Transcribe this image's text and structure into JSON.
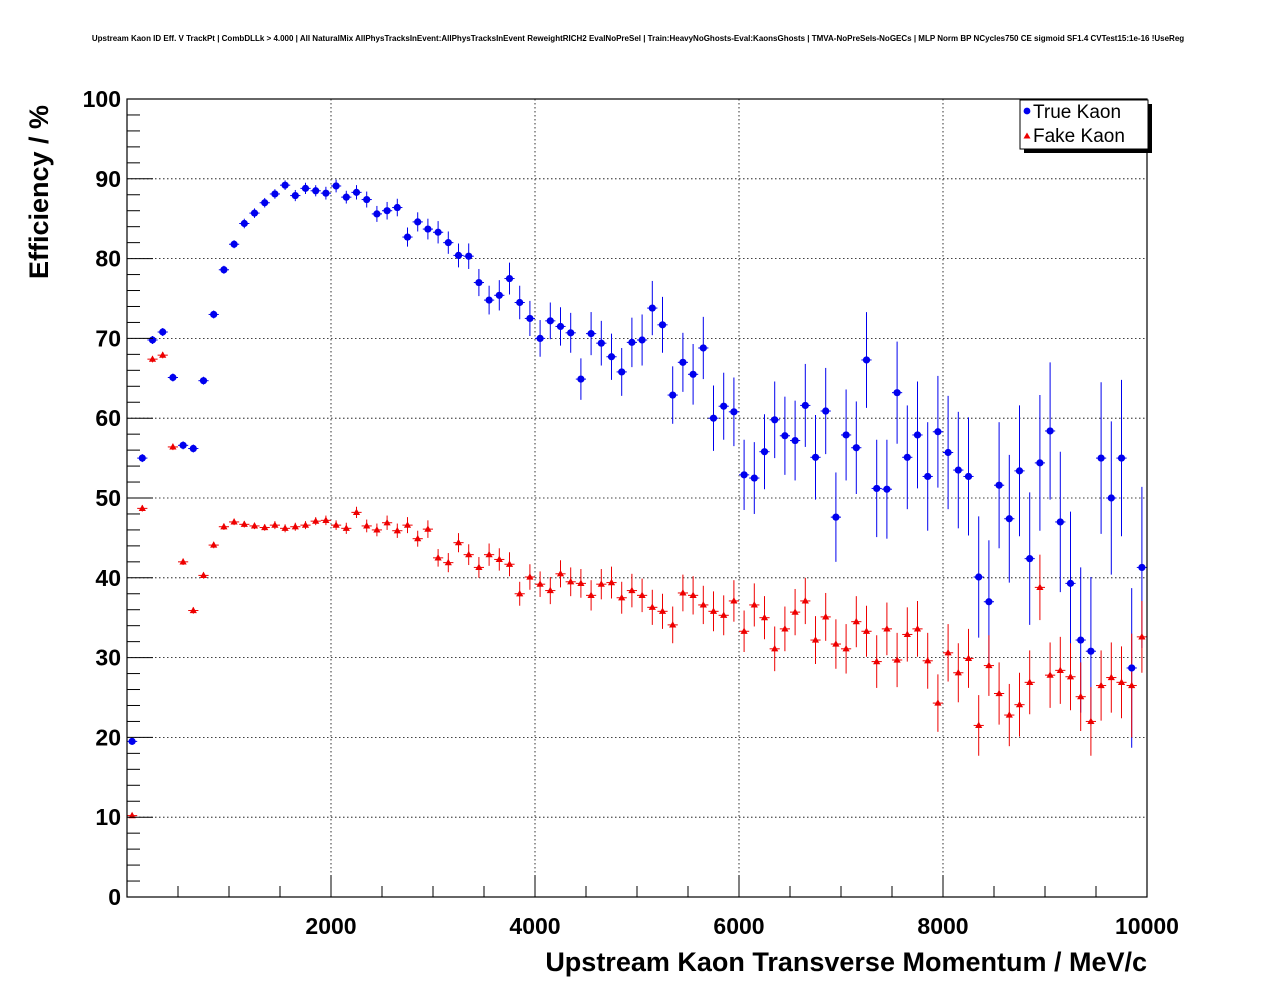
{
  "chart_data": {
    "type": "scatter",
    "title": "Upstream Kaon ID Eff. V TrackPt | CombDLLk > 4.000 | All NaturalMix AllPhysTracksInEvent:AllPhysTracksInEvent ReweightRICH2 EvalNoPreSel | Train:HeavyNoGhosts-Eval:KaonsGhosts | TMVA-NoPreSels-NoGECs | MLP Norm BP NCycles750 CE sigmoid SF1.4 CVTest15:1e-16 !UseReg",
    "xlabel": "Upstream Kaon Transverse Momentum / MeV/c",
    "ylabel": "Efficiency / %",
    "xlim": [
      0,
      10000
    ],
    "ylim": [
      0,
      100
    ],
    "x_ticks": [
      2000,
      4000,
      6000,
      8000,
      10000
    ],
    "y_ticks": [
      0,
      10,
      20,
      30,
      40,
      50,
      60,
      70,
      80,
      90,
      100
    ],
    "grid": true,
    "legend": "top-right",
    "series": [
      {
        "name": "True Kaon",
        "color": "#0000ee",
        "marker": "circle",
        "points": [
          [
            50,
            19.5,
            0.4
          ],
          [
            150,
            55.0,
            0.5
          ],
          [
            250,
            69.8,
            0.5
          ],
          [
            350,
            70.8,
            0.5
          ],
          [
            450,
            65.1,
            0.5
          ],
          [
            550,
            56.6,
            0.5
          ],
          [
            650,
            56.2,
            0.5
          ],
          [
            750,
            64.7,
            0.5
          ],
          [
            850,
            73.0,
            0.5
          ],
          [
            950,
            78.6,
            0.5
          ],
          [
            1050,
            81.8,
            0.5
          ],
          [
            1150,
            84.4,
            0.6
          ],
          [
            1250,
            85.7,
            0.6
          ],
          [
            1350,
            87.0,
            0.6
          ],
          [
            1450,
            88.1,
            0.6
          ],
          [
            1550,
            89.2,
            0.6
          ],
          [
            1650,
            87.9,
            0.7
          ],
          [
            1750,
            88.8,
            0.7
          ],
          [
            1850,
            88.5,
            0.7
          ],
          [
            1950,
            88.2,
            0.8
          ],
          [
            2050,
            89.1,
            0.8
          ],
          [
            2150,
            87.7,
            0.8
          ],
          [
            2250,
            88.3,
            0.9
          ],
          [
            2350,
            87.4,
            1.0
          ],
          [
            2450,
            85.6,
            1.0
          ],
          [
            2550,
            86.0,
            1.1
          ],
          [
            2650,
            86.4,
            1.1
          ],
          [
            2750,
            82.7,
            1.2
          ],
          [
            2850,
            84.6,
            1.2
          ],
          [
            2950,
            83.7,
            1.3
          ],
          [
            3050,
            83.3,
            1.4
          ],
          [
            3150,
            82.0,
            1.4
          ],
          [
            3250,
            80.4,
            1.5
          ],
          [
            3350,
            80.3,
            1.6
          ],
          [
            3450,
            77.0,
            1.7
          ],
          [
            3550,
            74.8,
            1.8
          ],
          [
            3650,
            75.4,
            1.9
          ],
          [
            3750,
            77.5,
            2.0
          ],
          [
            3850,
            74.5,
            2.1
          ],
          [
            3950,
            72.5,
            2.2
          ],
          [
            4050,
            70.0,
            2.3
          ],
          [
            4150,
            72.2,
            2.3
          ],
          [
            4250,
            71.5,
            2.4
          ],
          [
            4350,
            70.7,
            2.5
          ],
          [
            4450,
            64.9,
            2.6
          ],
          [
            4550,
            70.6,
            2.7
          ],
          [
            4650,
            69.4,
            2.8
          ],
          [
            4750,
            67.7,
            2.9
          ],
          [
            4850,
            65.8,
            3.0
          ],
          [
            4950,
            69.5,
            3.1
          ],
          [
            5050,
            69.8,
            3.2
          ],
          [
            5150,
            73.8,
            3.4
          ],
          [
            5250,
            71.7,
            3.5
          ],
          [
            5350,
            62.9,
            3.6
          ],
          [
            5450,
            67.0,
            3.7
          ],
          [
            5550,
            65.5,
            3.8
          ],
          [
            5650,
            68.8,
            3.9
          ],
          [
            5750,
            60.0,
            4.1
          ],
          [
            5850,
            61.5,
            4.2
          ],
          [
            5950,
            60.8,
            4.3
          ],
          [
            6050,
            52.9,
            4.4
          ],
          [
            6150,
            52.5,
            4.5
          ],
          [
            6250,
            55.8,
            4.7
          ],
          [
            6350,
            59.8,
            4.8
          ],
          [
            6450,
            57.8,
            4.9
          ],
          [
            6550,
            57.2,
            5.0
          ],
          [
            6650,
            61.6,
            5.2
          ],
          [
            6750,
            55.1,
            5.3
          ],
          [
            6850,
            60.9,
            5.4
          ],
          [
            6950,
            47.6,
            5.6
          ],
          [
            7050,
            57.9,
            5.7
          ],
          [
            7150,
            56.3,
            5.8
          ],
          [
            7250,
            67.3,
            6.0
          ],
          [
            7350,
            51.2,
            6.1
          ],
          [
            7450,
            51.1,
            6.2
          ],
          [
            7550,
            63.2,
            6.4
          ],
          [
            7650,
            55.1,
            6.5
          ],
          [
            7750,
            57.9,
            6.7
          ],
          [
            7850,
            52.7,
            6.8
          ],
          [
            7950,
            58.3,
            7.0
          ],
          [
            8050,
            55.7,
            7.1
          ],
          [
            8150,
            53.5,
            7.3
          ],
          [
            8250,
            52.7,
            7.4
          ],
          [
            8350,
            40.1,
            7.6
          ],
          [
            8450,
            37.0,
            7.7
          ],
          [
            8550,
            51.6,
            7.9
          ],
          [
            8650,
            47.4,
            8.0
          ],
          [
            8750,
            53.4,
            8.2
          ],
          [
            8850,
            42.4,
            8.3
          ],
          [
            8950,
            54.4,
            8.5
          ],
          [
            9050,
            58.4,
            8.6
          ],
          [
            9150,
            47.0,
            8.8
          ],
          [
            9250,
            39.3,
            9.0
          ],
          [
            9350,
            32.2,
            9.1
          ],
          [
            9450,
            30.8,
            9.3
          ],
          [
            9550,
            55.0,
            9.5
          ],
          [
            9650,
            50.0,
            9.6
          ],
          [
            9750,
            55.0,
            9.8
          ],
          [
            9850,
            28.7,
            10.0
          ],
          [
            9950,
            41.3,
            10.1
          ]
        ]
      },
      {
        "name": "Fake Kaon",
        "color": "#ee0000",
        "marker": "triangle",
        "points": [
          [
            50,
            10.2,
            0.3
          ],
          [
            150,
            48.7,
            0.4
          ],
          [
            250,
            67.4,
            0.4
          ],
          [
            350,
            67.9,
            0.4
          ],
          [
            450,
            56.4,
            0.4
          ],
          [
            550,
            42.0,
            0.4
          ],
          [
            650,
            35.9,
            0.4
          ],
          [
            750,
            40.3,
            0.4
          ],
          [
            850,
            44.1,
            0.4
          ],
          [
            950,
            46.4,
            0.4
          ],
          [
            1050,
            47.0,
            0.4
          ],
          [
            1150,
            46.7,
            0.4
          ],
          [
            1250,
            46.5,
            0.4
          ],
          [
            1350,
            46.3,
            0.4
          ],
          [
            1450,
            46.6,
            0.5
          ],
          [
            1550,
            46.2,
            0.5
          ],
          [
            1650,
            46.4,
            0.5
          ],
          [
            1750,
            46.6,
            0.5
          ],
          [
            1850,
            47.1,
            0.5
          ],
          [
            1950,
            47.2,
            0.6
          ],
          [
            2050,
            46.6,
            0.6
          ],
          [
            2150,
            46.2,
            0.7
          ],
          [
            2250,
            48.2,
            0.7
          ],
          [
            2350,
            46.5,
            0.8
          ],
          [
            2450,
            46.0,
            0.8
          ],
          [
            2550,
            46.9,
            0.9
          ],
          [
            2650,
            45.9,
            0.9
          ],
          [
            2750,
            46.6,
            1.0
          ],
          [
            2850,
            44.9,
            1.0
          ],
          [
            2950,
            46.1,
            1.1
          ],
          [
            3050,
            42.5,
            1.1
          ],
          [
            3150,
            41.9,
            1.2
          ],
          [
            3250,
            44.4,
            1.2
          ],
          [
            3350,
            42.9,
            1.3
          ],
          [
            3450,
            41.3,
            1.3
          ],
          [
            3550,
            42.9,
            1.4
          ],
          [
            3650,
            42.3,
            1.4
          ],
          [
            3750,
            41.7,
            1.5
          ],
          [
            3850,
            38.0,
            1.5
          ],
          [
            3950,
            40.1,
            1.6
          ],
          [
            4050,
            39.2,
            1.6
          ],
          [
            4150,
            38.4,
            1.7
          ],
          [
            4250,
            40.5,
            1.7
          ],
          [
            4350,
            39.5,
            1.8
          ],
          [
            4450,
            39.3,
            1.8
          ],
          [
            4550,
            37.8,
            1.9
          ],
          [
            4650,
            39.2,
            1.9
          ],
          [
            4750,
            39.4,
            2.0
          ],
          [
            4850,
            37.5,
            2.0
          ],
          [
            4950,
            38.4,
            2.1
          ],
          [
            5050,
            37.8,
            2.1
          ],
          [
            5150,
            36.3,
            2.2
          ],
          [
            5250,
            35.8,
            2.2
          ],
          [
            5350,
            34.1,
            2.3
          ],
          [
            5450,
            38.1,
            2.3
          ],
          [
            5550,
            37.8,
            2.4
          ],
          [
            5650,
            36.6,
            2.4
          ],
          [
            5750,
            35.8,
            2.5
          ],
          [
            5850,
            35.3,
            2.5
          ],
          [
            5950,
            37.1,
            2.6
          ],
          [
            6050,
            33.3,
            2.6
          ],
          [
            6150,
            36.6,
            2.7
          ],
          [
            6250,
            35.0,
            2.7
          ],
          [
            6350,
            31.1,
            2.8
          ],
          [
            6450,
            33.6,
            2.8
          ],
          [
            6550,
            35.7,
            2.9
          ],
          [
            6650,
            37.1,
            2.9
          ],
          [
            6750,
            32.2,
            3.0
          ],
          [
            6850,
            35.1,
            3.0
          ],
          [
            6950,
            31.7,
            3.1
          ],
          [
            7050,
            31.1,
            3.1
          ],
          [
            7150,
            34.5,
            3.2
          ],
          [
            7250,
            33.3,
            3.2
          ],
          [
            7350,
            29.5,
            3.3
          ],
          [
            7450,
            33.6,
            3.3
          ],
          [
            7550,
            29.7,
            3.4
          ],
          [
            7650,
            32.9,
            3.4
          ],
          [
            7750,
            33.6,
            3.5
          ],
          [
            7850,
            29.6,
            3.5
          ],
          [
            7950,
            24.3,
            3.6
          ],
          [
            8050,
            30.6,
            3.6
          ],
          [
            8150,
            28.1,
            3.7
          ],
          [
            8250,
            29.9,
            3.7
          ],
          [
            8350,
            21.5,
            3.8
          ],
          [
            8450,
            29.0,
            3.8
          ],
          [
            8550,
            25.5,
            3.9
          ],
          [
            8650,
            22.8,
            3.9
          ],
          [
            8750,
            24.1,
            4.0
          ],
          [
            8850,
            26.9,
            4.0
          ],
          [
            8950,
            38.8,
            4.1
          ],
          [
            9050,
            27.8,
            4.1
          ],
          [
            9150,
            28.4,
            4.2
          ],
          [
            9250,
            27.6,
            4.2
          ],
          [
            9350,
            25.1,
            4.3
          ],
          [
            9450,
            22.0,
            4.3
          ],
          [
            9550,
            26.5,
            4.4
          ],
          [
            9650,
            27.5,
            4.4
          ],
          [
            9750,
            26.9,
            4.5
          ],
          [
            9850,
            26.5,
            6.5
          ],
          [
            9950,
            32.6,
            4.5
          ]
        ]
      }
    ]
  }
}
